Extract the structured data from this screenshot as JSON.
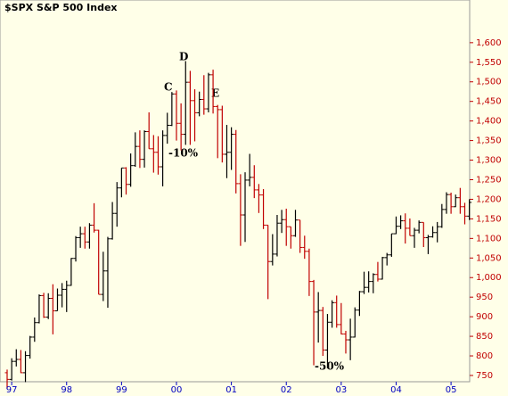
{
  "chart_data": {
    "type": "ohlc",
    "title": "$SPX S&P 500 Index",
    "categories": [
      null,
      "97",
      null,
      null,
      null,
      null,
      null,
      null,
      null,
      null,
      null,
      null,
      null,
      "98",
      null,
      null,
      null,
      null,
      null,
      null,
      null,
      null,
      null,
      null,
      null,
      "99",
      null,
      null,
      null,
      null,
      null,
      null,
      null,
      null,
      null,
      null,
      null,
      "00",
      null,
      null,
      null,
      null,
      null,
      null,
      null,
      null,
      null,
      null,
      null,
      "01",
      null,
      null,
      null,
      null,
      null,
      null,
      null,
      null,
      null,
      null,
      null,
      "02",
      null,
      null,
      null,
      null,
      null,
      null,
      null,
      null,
      null,
      null,
      null,
      "03",
      null,
      null,
      null,
      null,
      null,
      null,
      null,
      null,
      null,
      null,
      null,
      "04",
      null,
      null,
      null,
      null,
      null,
      null,
      null,
      null,
      null,
      null,
      null,
      "05",
      null,
      null,
      null,
      null
    ],
    "open": [
      757,
      740,
      786,
      791,
      757,
      801,
      848,
      885,
      954,
      899,
      947,
      915,
      955,
      970,
      980,
      1049,
      1102,
      1112,
      1091,
      1134,
      1121,
      957,
      1017,
      1099,
      1164,
      1229,
      1280,
      1238,
      1286,
      1335,
      1302,
      1373,
      1329,
      1320,
      1283,
      1363,
      1389,
      1469,
      1394,
      1366,
      1499,
      1452,
      1421,
      1455,
      1431,
      1518,
      1437,
      1429,
      1315,
      1320,
      1366,
      1240,
      1160,
      1249,
      1256,
      1224,
      1211,
      1134,
      1041,
      1060,
      1139,
      1148,
      1130,
      1107,
      1147,
      1077,
      1067,
      990,
      912,
      916,
      815,
      886,
      936,
      880,
      856,
      841,
      848,
      917,
      964,
      975,
      990,
      1008,
      996,
      1051,
      1058,
      1112,
      1131,
      1145,
      1126,
      1107,
      1121,
      1141,
      1102,
      1104,
      1115,
      1130,
      1174,
      1212,
      1181,
      1204,
      1181,
      1157
    ],
    "high": [
      765,
      794,
      817,
      815,
      812,
      851,
      898,
      957,
      961,
      960,
      983,
      972,
      986,
      992,
      1050,
      1106,
      1130,
      1130,
      1139,
      1190,
      1122,
      1066,
      1104,
      1193,
      1244,
      1280,
      1282,
      1317,
      1371,
      1376,
      1376,
      1422,
      1364,
      1361,
      1376,
      1421,
      1474,
      1478,
      1445,
      1553,
      1528,
      1481,
      1475,
      1517,
      1523,
      1531,
      1441,
      1439,
      1390,
      1384,
      1377,
      1264,
      1269,
      1316,
      1287,
      1239,
      1226,
      1134,
      1111,
      1160,
      1173,
      1176,
      1130,
      1173,
      1147,
      1107,
      1074,
      994,
      963,
      925,
      907,
      942,
      954,
      935,
      864,
      895,
      924,
      966,
      1015,
      1016,
      1011,
      1040,
      1053,
      1063,
      1112,
      1156,
      1159,
      1164,
      1151,
      1127,
      1146,
      1141,
      1109,
      1131,
      1142,
      1188,
      1218,
      1217,
      1212,
      1229,
      1191,
      1200
    ],
    "low": [
      716,
      737,
      773,
      756,
      733,
      793,
      836,
      883,
      897,
      894,
      855,
      915,
      924,
      912,
      979,
      1041,
      1076,
      1074,
      1074,
      1115,
      957,
      940,
      923,
      1097,
      1130,
      1205,
      1212,
      1232,
      1283,
      1280,
      1281,
      1329,
      1268,
      1263,
      1233,
      1342,
      1387,
      1350,
      1325,
      1339,
      1339,
      1348,
      1412,
      1416,
      1422,
      1419,
      1305,
      1294,
      1254,
      1275,
      1215,
      1081,
      1091,
      1233,
      1203,
      1165,
      1124,
      945,
      1031,
      1054,
      1114,
      1081,
      1074,
      1104,
      1063,
      1048,
      953,
      776,
      834,
      800,
      768,
      872,
      872,
      855,
      806,
      789,
      847,
      902,
      958,
      962,
      960,
      990,
      995,
      1031,
      1053,
      1111,
      1124,
      1087,
      1107,
      1076,
      1113,
      1078,
      1060,
      1102,
      1090,
      1127,
      1163,
      1163,
      1180,
      1163,
      1136,
      1147
    ],
    "close": [
      740,
      786,
      791,
      757,
      801,
      848,
      885,
      954,
      899,
      947,
      915,
      955,
      970,
      980,
      1049,
      1102,
      1112,
      1091,
      1134,
      1121,
      957,
      1017,
      1099,
      1164,
      1229,
      1280,
      1238,
      1286,
      1335,
      1302,
      1373,
      1329,
      1320,
      1283,
      1363,
      1389,
      1469,
      1394,
      1366,
      1499,
      1452,
      1421,
      1455,
      1431,
      1518,
      1437,
      1429,
      1315,
      1320,
      1366,
      1240,
      1160,
      1249,
      1256,
      1224,
      1211,
      1134,
      1041,
      1060,
      1139,
      1148,
      1130,
      1107,
      1147,
      1077,
      1067,
      990,
      912,
      916,
      815,
      886,
      936,
      880,
      856,
      841,
      848,
      917,
      964,
      975,
      990,
      1008,
      996,
      1051,
      1058,
      1112,
      1131,
      1145,
      1126,
      1107,
      1121,
      1141,
      1102,
      1104,
      1115,
      1130,
      1174,
      1212,
      1181,
      1204,
      1181,
      1157,
      1192
    ],
    "up_color": "#000000",
    "down_color": "#c00000",
    "ylim": [
      734,
      1709
    ],
    "yticks": [
      750,
      800,
      850,
      900,
      950,
      {
        "value": 1000,
        "label": "1,000"
      },
      {
        "value": 1050,
        "label": "1,050"
      },
      {
        "value": 1100,
        "label": "1,100"
      },
      {
        "value": 1150,
        "label": "1,150"
      },
      {
        "value": 1200,
        "label": "1,200"
      },
      {
        "value": 1250,
        "label": "1,250"
      },
      {
        "value": 1300,
        "label": "1,300"
      },
      {
        "value": 1350,
        "label": "1,350"
      },
      {
        "value": 1400,
        "label": "1,400"
      },
      {
        "value": 1450,
        "label": "1,450"
      },
      {
        "value": 1500,
        "label": "1,500"
      },
      {
        "value": 1550,
        "label": "1,550"
      },
      {
        "value": 1600,
        "label": "1,600"
      }
    ],
    "annotations": [
      "C",
      "D",
      "E",
      "-10%",
      "-50%"
    ]
  }
}
